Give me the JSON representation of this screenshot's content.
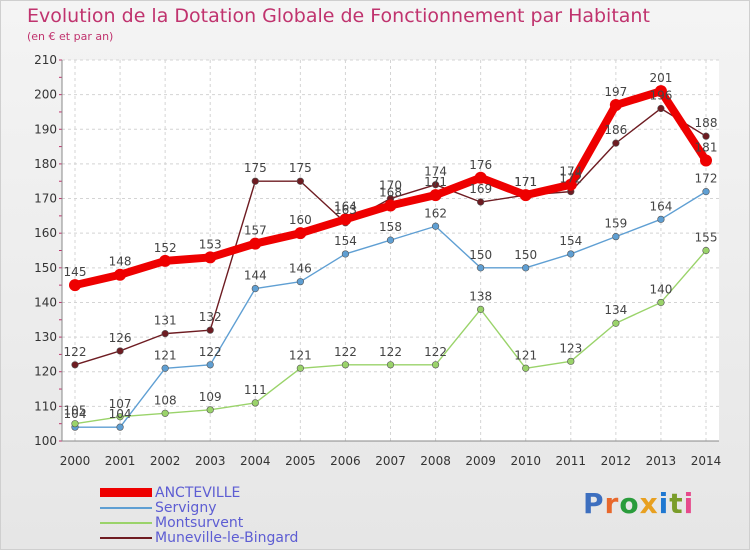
{
  "title": "Evolution de la Dotation Globale de Fonctionnement par Habitant",
  "subtitle": "(en € et par an)",
  "logo": {
    "text": "Proxiti",
    "colors": [
      "#3d6fbf",
      "#e8682c",
      "#2a9c3c",
      "#e8a020",
      "#1f78d1",
      "#7a9d2a",
      "#e64a8c"
    ]
  },
  "chart_data": {
    "type": "line",
    "title": "Evolution de la Dotation Globale de Fonctionnement par Habitant",
    "subtitle": "(en € et par an)",
    "x": [
      "2000",
      "2001",
      "2002",
      "2003",
      "2004",
      "2005",
      "2006",
      "2007",
      "2008",
      "2009",
      "2010",
      "2011",
      "2012",
      "2013",
      "2014"
    ],
    "ylim": [
      100,
      210
    ],
    "yticks": [
      100,
      110,
      120,
      130,
      140,
      150,
      160,
      170,
      180,
      190,
      200,
      210
    ],
    "grid": true,
    "legend_position": "bottom-left",
    "series": [
      {
        "name": "ANCTEVILLE",
        "color": "#ee0000",
        "emphasis": true,
        "values": [
          145,
          148,
          152,
          153,
          157,
          160,
          164,
          168,
          171,
          176,
          171,
          174,
          197,
          201,
          181
        ]
      },
      {
        "name": "Servigny",
        "color": "#5f9fd3",
        "values": [
          104,
          104,
          121,
          122,
          144,
          146,
          154,
          158,
          162,
          150,
          150,
          154,
          159,
          164,
          172
        ]
      },
      {
        "name": "Montsurvent",
        "color": "#9ad36a",
        "values": [
          105,
          107,
          108,
          109,
          111,
          121,
          122,
          122,
          122,
          138,
          121,
          123,
          134,
          140,
          155
        ]
      },
      {
        "name": "Muneville-le-Bingard",
        "color": "#6e1c22",
        "values": [
          122,
          126,
          131,
          132,
          175,
          175,
          163,
          170,
          174,
          169,
          171,
          172,
          186,
          196,
          188
        ]
      }
    ]
  }
}
